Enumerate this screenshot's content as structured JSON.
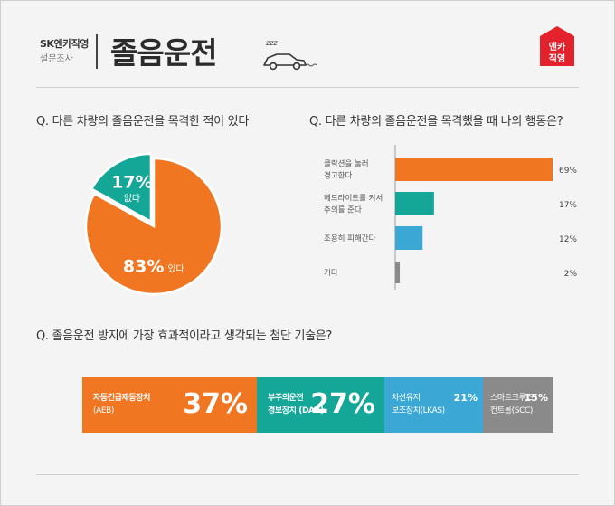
{
  "header": {
    "brand": "SK엔카직영",
    "brand_sub": "설문조사",
    "title": "졸음운전",
    "logo_line1": "엔카",
    "logo_line2": "직영",
    "zzz": "zzz"
  },
  "colors": {
    "orange": "#f07622",
    "teal": "#14a797",
    "blue": "#3ba7d4",
    "gray": "#8a8a8a"
  },
  "chart_data": [
    {
      "type": "pie",
      "title": "Q. 다른 차량의 졸음운전을 목격한 적이 있다",
      "slices": [
        {
          "label": "있다",
          "value": 83,
          "display": "83%",
          "color": "#f07622"
        },
        {
          "label": "없다",
          "value": 17,
          "display": "17%",
          "color": "#14a797"
        }
      ]
    },
    {
      "type": "bar",
      "title": "Q. 다른 차량의 졸음운전을 목격했을 때 나의 행동은?",
      "orientation": "horizontal",
      "categories": [
        [
          "클락션을 눌러",
          "경고한다"
        ],
        [
          "헤드라이트를 켜서",
          "주의를 준다"
        ],
        [
          "조용히 피해간다"
        ],
        [
          "기타"
        ]
      ],
      "values": [
        69,
        17,
        12,
        2
      ],
      "value_labels": [
        "69%",
        "17%",
        "12%",
        "2%"
      ],
      "colors": [
        "#f07622",
        "#14a797",
        "#3ba7d4",
        "#8a8a8a"
      ],
      "xlim": [
        0,
        69
      ]
    },
    {
      "type": "bar",
      "stacked": true,
      "title": "Q. 졸음운전 방지에 가장 효과적이라고 생각되는 첨단 기술은?",
      "series": [
        {
          "name": [
            "자동긴급제동장치",
            "(AEB)"
          ],
          "value": 37,
          "display": "37%",
          "color": "#f07622"
        },
        {
          "name": [
            "부주의운전",
            "경보장치 (DAA)"
          ],
          "value": 27,
          "display": "27%",
          "color": "#14a797"
        },
        {
          "name": [
            "차선유지",
            "보조장치(LKAS)"
          ],
          "value": 21,
          "display": "21%",
          "color": "#3ba7d4"
        },
        {
          "name": [
            "스마트크루즈",
            "컨트롤(SCC)"
          ],
          "value": 15,
          "display": "15%",
          "color": "#8a8a8a"
        }
      ]
    }
  ]
}
